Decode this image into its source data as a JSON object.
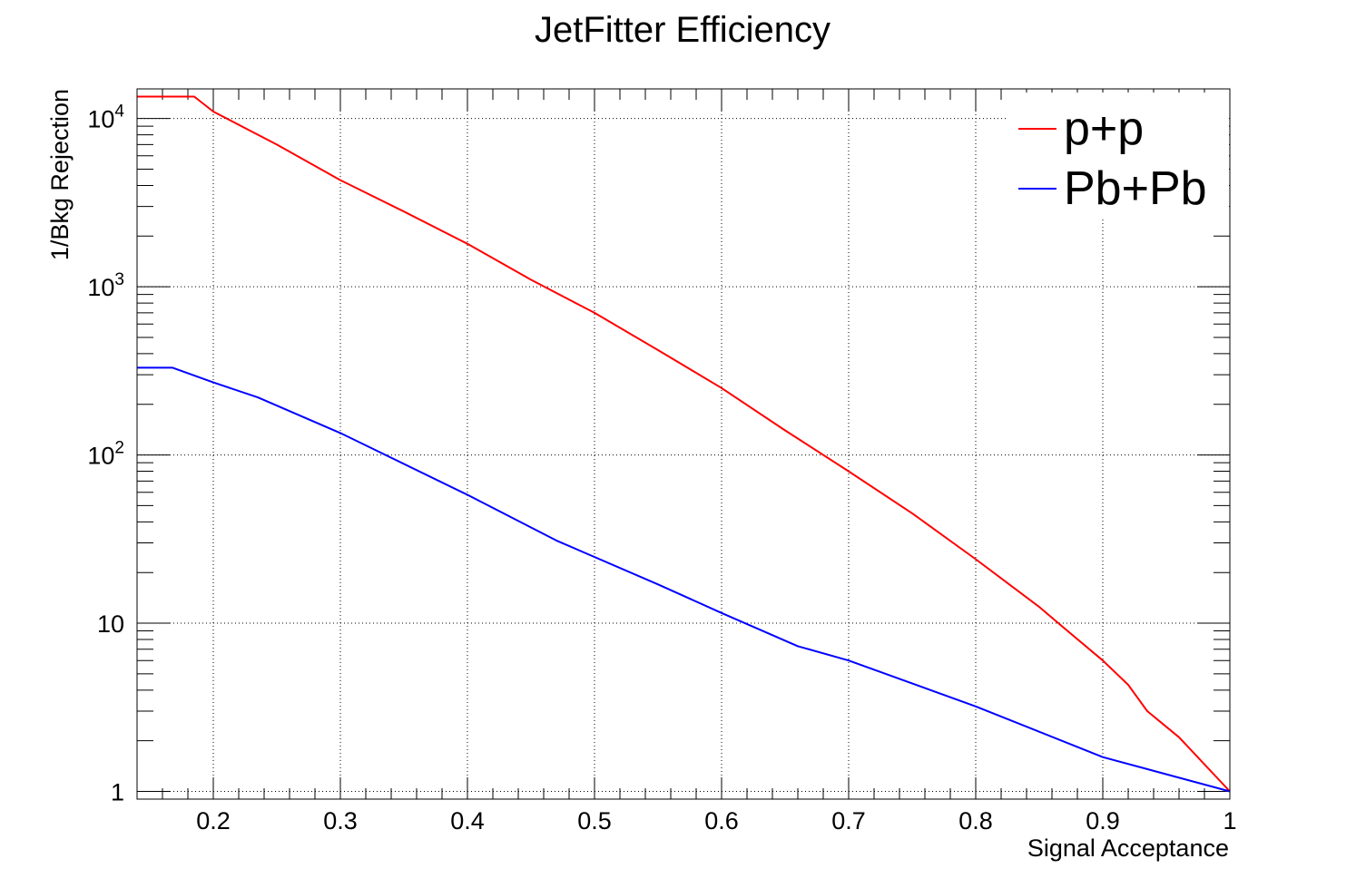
{
  "chart_data": {
    "type": "line",
    "title": "JetFitter Efficiency",
    "xlabel": "Signal Acceptance",
    "ylabel": "1/Bkg Rejection",
    "xlim": [
      0.14,
      1.0
    ],
    "ylim": [
      0.9,
      15000
    ],
    "yscale": "log",
    "grid": true,
    "legend_position": "top-right",
    "x_ticks": [
      {
        "value": 0.2,
        "label": "0.2"
      },
      {
        "value": 0.3,
        "label": "0.3"
      },
      {
        "value": 0.4,
        "label": "0.4"
      },
      {
        "value": 0.5,
        "label": "0.5"
      },
      {
        "value": 0.6,
        "label": "0.6"
      },
      {
        "value": 0.7,
        "label": "0.7"
      },
      {
        "value": 0.8,
        "label": "0.8"
      },
      {
        "value": 0.9,
        "label": "0.9"
      },
      {
        "value": 1.0,
        "label": "1"
      }
    ],
    "y_ticks": [
      {
        "value": 1,
        "base": "1",
        "exp": ""
      },
      {
        "value": 10,
        "base": "10",
        "exp": ""
      },
      {
        "value": 100,
        "base": "10",
        "exp": "2"
      },
      {
        "value": 1000,
        "base": "10",
        "exp": "3"
      },
      {
        "value": 10000,
        "base": "10",
        "exp": "4"
      }
    ],
    "series": [
      {
        "name": "p+p",
        "color": "#ff0000",
        "x": [
          0.14,
          0.185,
          0.2,
          0.25,
          0.3,
          0.35,
          0.4,
          0.45,
          0.5,
          0.55,
          0.6,
          0.65,
          0.7,
          0.75,
          0.8,
          0.85,
          0.865,
          0.9,
          0.92,
          0.935,
          0.96,
          1.0
        ],
        "y": [
          13500,
          13500,
          11000,
          7000,
          4300,
          2800,
          1800,
          1100,
          700,
          420,
          250,
          140,
          80,
          45,
          24,
          12.5,
          10,
          6,
          4.3,
          3,
          2.1,
          1
        ]
      },
      {
        "name": "Pb+Pb",
        "color": "#0000ff",
        "x": [
          0.14,
          0.168,
          0.2,
          0.235,
          0.3,
          0.4,
          0.47,
          0.55,
          0.6,
          0.66,
          0.7,
          0.8,
          0.9,
          1.0
        ],
        "y": [
          330,
          330,
          270,
          220,
          135,
          58,
          31,
          17,
          11.5,
          7.3,
          6,
          3.2,
          1.6,
          1
        ]
      }
    ]
  }
}
